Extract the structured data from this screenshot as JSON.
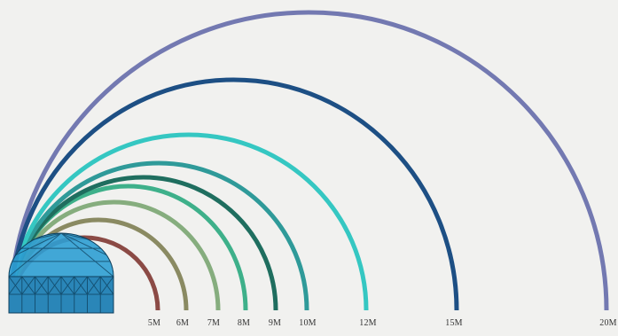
{
  "diagram": {
    "sizes": [
      {
        "label": "5M",
        "color": "#8b4a45"
      },
      {
        "label": "6M",
        "color": "#8a8a62"
      },
      {
        "label": "7M",
        "color": "#86ad7e"
      },
      {
        "label": "8M",
        "color": "#3eb08a"
      },
      {
        "label": "9M",
        "color": "#1f6e5f"
      },
      {
        "label": "10M",
        "color": "#2f9a99"
      },
      {
        "label": "12M",
        "color": "#35c7c2"
      },
      {
        "label": "15M",
        "color": "#1d4f84"
      },
      {
        "label": "20M",
        "color": "#7379b1"
      }
    ],
    "dome_icon": "geodesic-dome-icon",
    "dome_colors": {
      "fill": "#2e9fd3",
      "base": "#2a86b8",
      "lines": "#0e3f5c"
    }
  }
}
